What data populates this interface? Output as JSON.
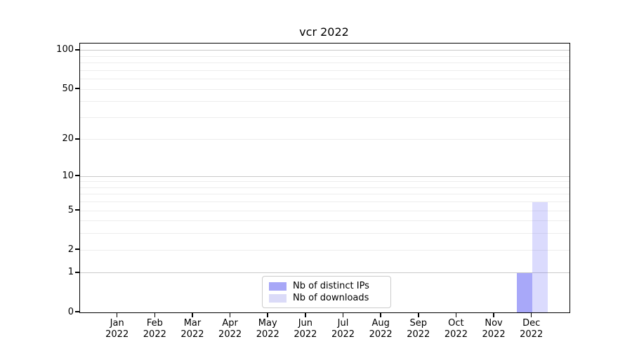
{
  "chart_data": {
    "type": "bar",
    "title": "vcr 2022",
    "xlabel": "",
    "ylabel": "",
    "x_tick_months": [
      "Jan",
      "Feb",
      "Mar",
      "Apr",
      "May",
      "Jun",
      "Jul",
      "Aug",
      "Sep",
      "Oct",
      "Nov",
      "Dec"
    ],
    "x_tick_year": "2022",
    "categories": [
      "Jan 2022",
      "Feb 2022",
      "Mar 2022",
      "Apr 2022",
      "May 2022",
      "Jun 2022",
      "Jul 2022",
      "Aug 2022",
      "Sep 2022",
      "Oct 2022",
      "Nov 2022",
      "Dec 2022"
    ],
    "series": [
      {
        "name": "Nb of distinct IPs",
        "swatch_color": "#a7a7f7",
        "fill_color": "rgba(105,105,245,0.58)",
        "values": [
          0,
          0,
          0,
          0,
          0,
          0,
          0,
          0,
          0,
          0,
          0,
          1
        ]
      },
      {
        "name": "Nb of downloads",
        "swatch_color": "#dbdbf8",
        "fill_color": "rgba(105,105,245,0.24)",
        "values": [
          0,
          0,
          0,
          0,
          0,
          0,
          0,
          0,
          0,
          0,
          0,
          6
        ]
      }
    ],
    "yscale": "log10(1+y)",
    "y_ticks": [
      0,
      1,
      2,
      5,
      10,
      20,
      50,
      100
    ],
    "y_major_gridlines": [
      1,
      10,
      100
    ],
    "y_minor_gridlines": [
      2,
      3,
      4,
      5,
      6,
      7,
      8,
      9,
      20,
      30,
      40,
      50,
      60,
      70,
      80,
      90
    ],
    "ylim": [
      0,
      113
    ],
    "grid": true,
    "legend_position": "lower center",
    "colors": {
      "axis": "#000000",
      "text": "#000000",
      "major_grid": "#c9c9c9",
      "minor_grid": "#ededed",
      "legend_border": "#cccccc",
      "background": "#ffffff"
    }
  }
}
